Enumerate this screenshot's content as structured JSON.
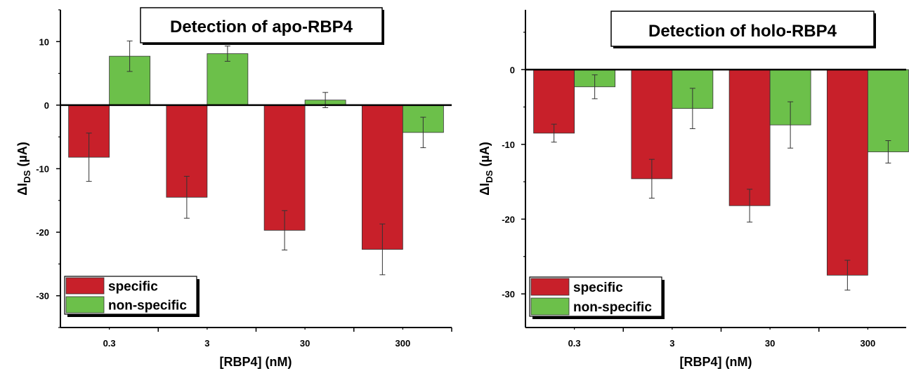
{
  "colors": {
    "specific": "#c8202a",
    "non_specific": "#6cc04a"
  },
  "chart_data": [
    {
      "type": "bar",
      "title": "Detection of apo-RBP4",
      "xlabel": "[RBP4] (nM)",
      "ylabel_main": "ΔI",
      "ylabel_sub": "DS",
      "ylabel_unit": " (µA)",
      "categories": [
        "0.3",
        "3",
        "30",
        "300"
      ],
      "ylim": [
        -35,
        15
      ],
      "yticks": [
        10,
        0,
        -10,
        -20,
        -30
      ],
      "ytick_labels": [
        "10",
        "0",
        "-10",
        "-20",
        "-30"
      ],
      "series": [
        {
          "name": "specific",
          "values": [
            -8.2,
            -14.5,
            -19.7,
            -22.7
          ],
          "errors": [
            3.8,
            3.3,
            3.1,
            4.0
          ]
        },
        {
          "name": "non-specific",
          "values": [
            7.7,
            8.1,
            0.8,
            -4.3
          ],
          "errors": [
            2.4,
            1.2,
            1.2,
            2.4
          ]
        }
      ],
      "legend_position": "bottom-left"
    },
    {
      "type": "bar",
      "title": "Detection of holo-RBP4",
      "xlabel": "[RBP4] (nM)",
      "ylabel_main": "ΔI",
      "ylabel_sub": "DS",
      "ylabel_unit": " (µA)",
      "categories": [
        "0.3",
        "3",
        "30",
        "300"
      ],
      "ylim": [
        -34.5,
        8
      ],
      "yticks": [
        0,
        -10,
        -20,
        -30
      ],
      "ytick_labels": [
        "0",
        "-10",
        "-20",
        "-30"
      ],
      "series": [
        {
          "name": "specific",
          "values": [
            -8.5,
            -14.6,
            -18.2,
            -27.5
          ],
          "errors": [
            1.2,
            2.6,
            2.2,
            2.0
          ]
        },
        {
          "name": "non-specific",
          "values": [
            -2.3,
            -5.2,
            -7.4,
            -11.0
          ],
          "errors": [
            1.6,
            2.7,
            3.1,
            1.5
          ]
        }
      ],
      "legend_position": "bottom-left"
    }
  ]
}
